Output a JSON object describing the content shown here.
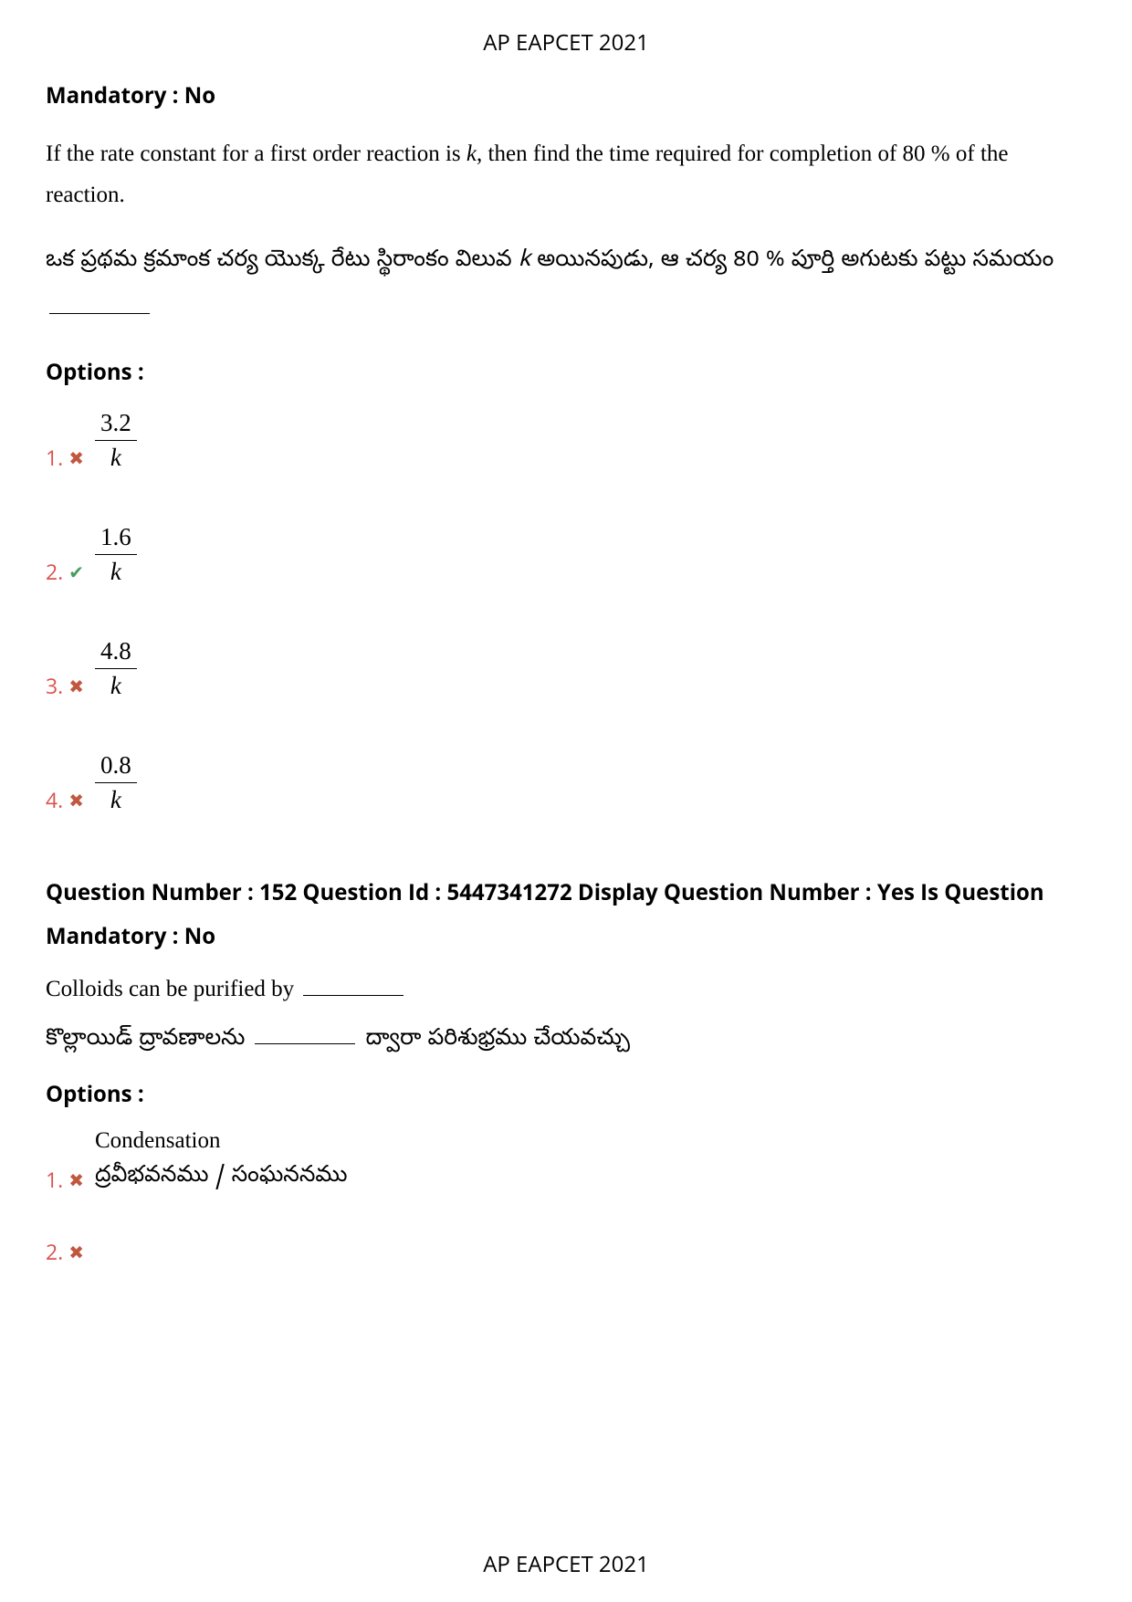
{
  "header": {
    "title": "AP EAPCET 2021"
  },
  "footer": {
    "title": "AP EAPCET 2021"
  },
  "q1": {
    "mandatory_label": "Mandatory : No",
    "english_part1": "If the rate constant for a first order reaction is ",
    "english_k": "k",
    "english_part2": ", then find the time required for completion of 80 % of the reaction.",
    "telugu_part1": "ఒక ప్రథమ క్రమాంక చర్య యొక్క రేటు స్థిరాంకం విలువ ",
    "telugu_k": "k",
    "telugu_part2": " అయినపుడు, ఆ చర్య 80 % పూర్తి అగుటకు పట్టు సమయం ",
    "options_label": "Options :",
    "options": [
      {
        "num": "1.",
        "mark": "✖",
        "mark_class": "mark-wrong",
        "numerator": "3.2",
        "denominator": "k"
      },
      {
        "num": "2.",
        "mark": "✔",
        "mark_class": "mark-correct",
        "numerator": "1.6",
        "denominator": "k"
      },
      {
        "num": "3.",
        "mark": "✖",
        "mark_class": "mark-wrong",
        "numerator": "4.8",
        "denominator": "k"
      },
      {
        "num": "4.",
        "mark": "✖",
        "mark_class": "mark-wrong",
        "numerator": "0.8",
        "denominator": "k"
      }
    ]
  },
  "q2": {
    "meta": "Question Number : 152 Question Id : 5447341272 Display Question Number : Yes Is Question Mandatory : No",
    "english": "Colloids can be purified by ",
    "telugu_part1": "కొల్లాయిడ్ ద్రావణాలను ",
    "telugu_part2": " ద్వారా పరిశుభ్రము చేయవచ్చు",
    "options_label": "Options :",
    "options": [
      {
        "num": "1.",
        "mark": "✖",
        "mark_class": "mark-wrong",
        "en": "Condensation",
        "te": "ద్రవీభవనము / సంఘననము"
      },
      {
        "num": "2.",
        "mark": "✖",
        "mark_class": "mark-wrong",
        "en": "",
        "te": ""
      }
    ]
  }
}
